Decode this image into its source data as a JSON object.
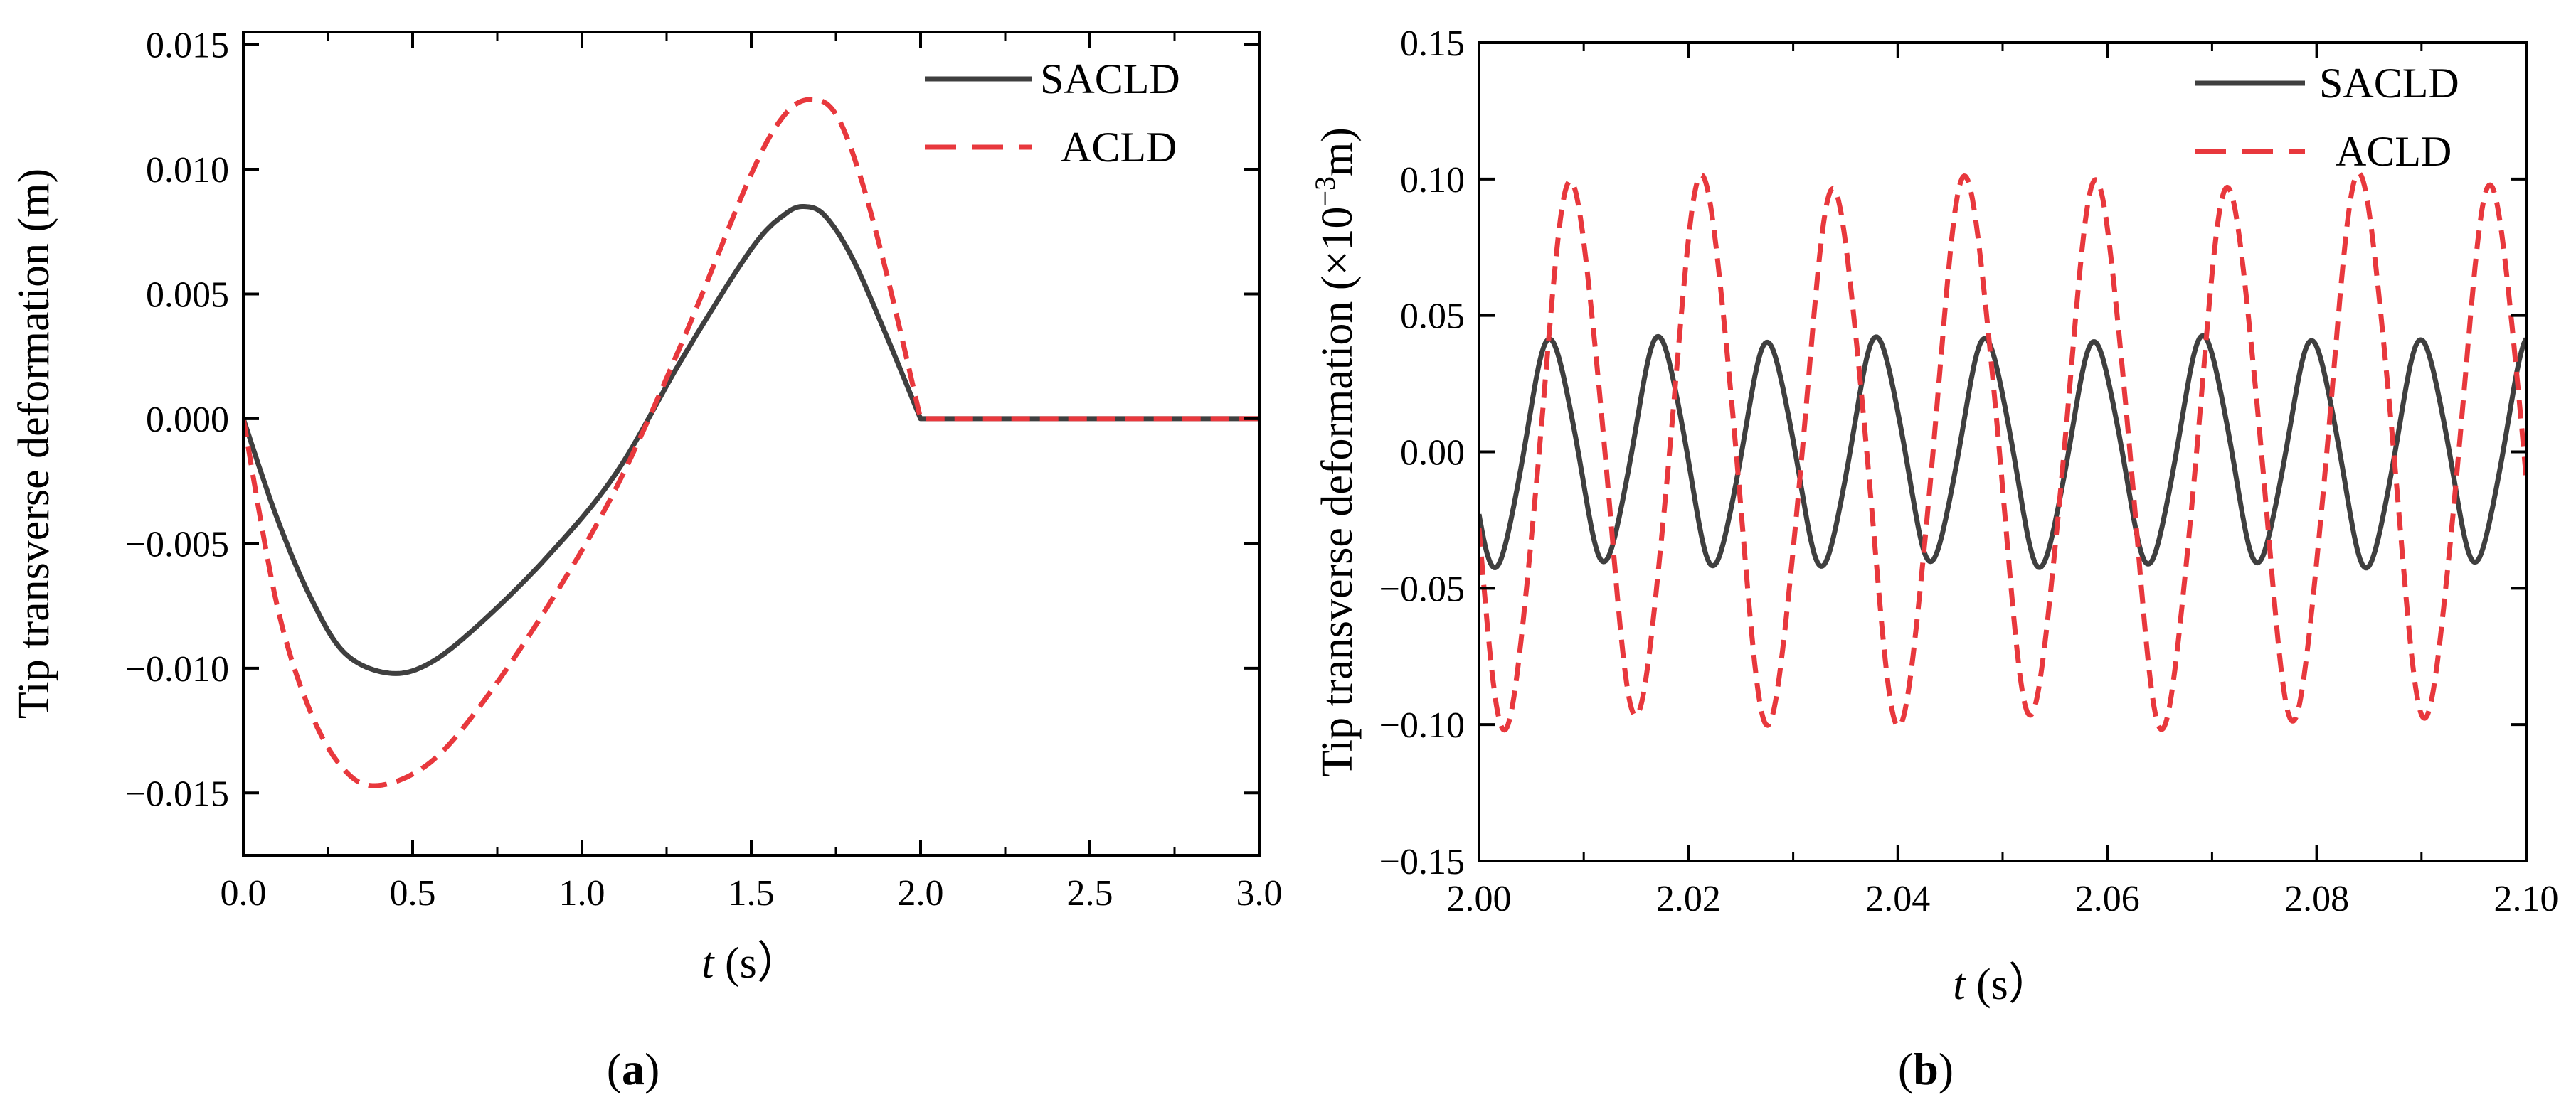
{
  "chart_data": [
    {
      "type": "line",
      "panel_label_open": "(",
      "panel_label_letter": "a",
      "panel_label_close": ")",
      "xlabel_var": "t",
      "xlabel_unit": " (s）",
      "ylabel": "Tip transverse deformation (m)",
      "xlim": [
        0.0,
        3.0
      ],
      "ylim": [
        -0.0175,
        0.0155
      ],
      "xticks": [
        0.0,
        0.5,
        1.0,
        1.5,
        2.0,
        2.5,
        3.0
      ],
      "xtick_labels": [
        "0.0",
        "0.5",
        "1.0",
        "1.5",
        "2.0",
        "2.5",
        "3.0"
      ],
      "yticks": [
        0.015,
        0.01,
        0.005,
        0.0,
        -0.005,
        -0.01,
        -0.015
      ],
      "ytick_labels": [
        "0.015",
        "0.010",
        "0.005",
        "0.000",
        "−0.005",
        "−0.010",
        "−0.015"
      ],
      "legend_position": "top-right",
      "series": [
        {
          "name": "SACLD",
          "style": "solid",
          "color": "#3f3f3f",
          "x": [
            0.0,
            0.1,
            0.2,
            0.3,
            0.43,
            0.55,
            0.7,
            0.9,
            1.1,
            1.3,
            1.5,
            1.6,
            1.66,
            1.72,
            1.8,
            1.9,
            2.0,
            2.2,
            2.5,
            3.0
          ],
          "y": [
            0.0,
            -0.004,
            -0.0072,
            -0.0094,
            -0.0102,
            -0.0098,
            -0.0082,
            -0.0055,
            -0.0022,
            0.0025,
            0.0068,
            0.0082,
            0.0085,
            0.0081,
            0.0064,
            0.0033,
            0.0,
            0.0,
            0.0,
            0.0
          ]
        },
        {
          "name": "ACLD",
          "style": "dashed",
          "color": "#e8383d",
          "x": [
            0.0,
            0.1,
            0.2,
            0.3,
            0.4,
            0.55,
            0.7,
            0.9,
            1.1,
            1.3,
            1.5,
            1.6,
            1.68,
            1.75,
            1.82,
            1.9,
            2.0,
            2.2,
            2.5,
            3.0
          ],
          "y": [
            0.0,
            -0.0075,
            -0.0118,
            -0.0141,
            -0.0147,
            -0.0138,
            -0.0115,
            -0.0075,
            -0.0028,
            0.0032,
            0.0098,
            0.0122,
            0.0128,
            0.0122,
            0.0098,
            0.0058,
            0.0,
            0.0,
            0.0,
            0.0
          ]
        }
      ]
    },
    {
      "type": "line",
      "panel_label_open": "(",
      "panel_label_letter": "b",
      "panel_label_close": ")",
      "xlabel_var": "t",
      "xlabel_unit": " (s）",
      "ylabel_main": "Tip transverse deformation (×10",
      "ylabel_sup": "−3",
      "ylabel_end": "m)",
      "xlim": [
        2.0,
        2.1
      ],
      "ylim": [
        -0.15,
        0.15
      ],
      "xticks": [
        2.0,
        2.02,
        2.04,
        2.06,
        2.08,
        2.1
      ],
      "xtick_labels": [
        "2.00",
        "2.02",
        "2.04",
        "2.06",
        "2.08",
        "2.10"
      ],
      "yticks": [
        0.15,
        0.1,
        0.05,
        0.0,
        -0.05,
        -0.1,
        -0.15
      ],
      "ytick_labels": [
        "0.15",
        "0.10",
        "0.05",
        "0.00",
        "−0.05",
        "−0.10",
        "−0.15"
      ],
      "legend_position": "top-right",
      "series": [
        {
          "name": "SACLD",
          "style": "solid",
          "color": "#3f3f3f",
          "x_start": 2.0,
          "x_end": 2.1,
          "amplitude": 0.04,
          "period": 0.0104,
          "peak_time": 2.0068
        },
        {
          "name": "ACLD",
          "style": "dashed",
          "color": "#e8383d",
          "x_start": 2.0,
          "x_end": 2.1,
          "amplitude": 0.096,
          "period": 0.01255,
          "peak_time": 2.0088
        }
      ]
    }
  ]
}
